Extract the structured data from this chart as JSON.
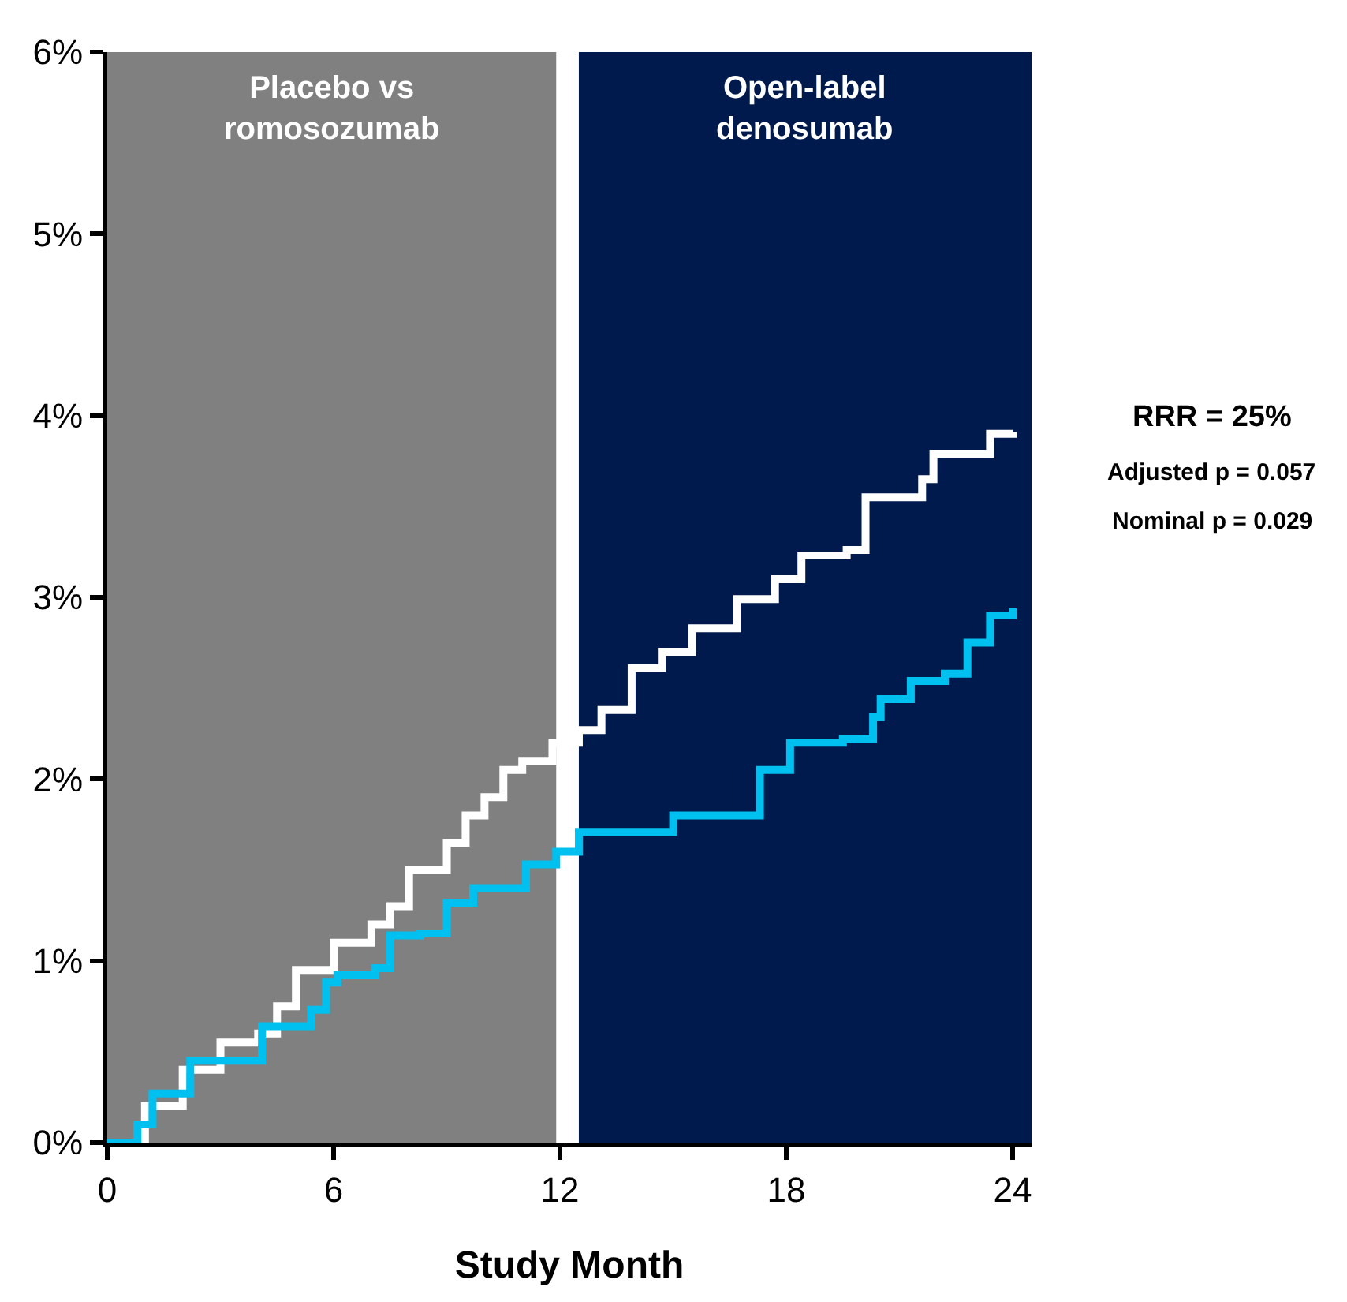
{
  "chart_data": {
    "type": "step",
    "xlabel": "Study Month",
    "xlim": [
      0,
      24.5
    ],
    "xticks": [
      0,
      6,
      12,
      18,
      24
    ],
    "ylim": [
      0,
      6
    ],
    "yticks": [
      {
        "value": 0,
        "label": "0%"
      },
      {
        "value": 1,
        "label": "1%"
      },
      {
        "value": 2,
        "label": "2%"
      },
      {
        "value": 3,
        "label": "3%"
      },
      {
        "value": 4,
        "label": "4%"
      },
      {
        "value": 5,
        "label": "5%"
      },
      {
        "value": 6,
        "label": "6%"
      }
    ],
    "grid": false,
    "marker": "none",
    "line_style": "solid",
    "bands": [
      {
        "axis": "x",
        "from": 0,
        "to": 11.9,
        "label": "Placebo vs\nromosozumab",
        "color": "#808080"
      },
      {
        "axis": "x",
        "from": 12.5,
        "to": 24.5,
        "label": "Open-label\ndenosumab",
        "color": "#001a4d"
      }
    ],
    "series": [
      {
        "color": "#ffffff",
        "x": [
          0,
          1,
          2,
          3,
          4,
          4.5,
          5,
          6,
          7,
          7.5,
          8,
          9,
          9.5,
          10,
          10.5,
          11,
          11.8,
          12.5,
          13.1,
          13.9,
          14.7,
          15.5,
          16.7,
          17.7,
          18.4,
          19.6,
          20.1,
          21.6,
          21.9,
          23.4,
          24
        ],
        "values": [
          0,
          0.2,
          0.4,
          0.55,
          0.6,
          0.75,
          0.95,
          1.1,
          1.2,
          1.3,
          1.5,
          1.65,
          1.8,
          1.9,
          2.05,
          2.1,
          2.2,
          2.27,
          2.38,
          2.61,
          2.7,
          2.83,
          2.99,
          3.1,
          3.23,
          3.26,
          3.55,
          3.65,
          3.79,
          3.9,
          3.91
        ]
      },
      {
        "color": "#00c0f0",
        "x": [
          0,
          0.8,
          1.2,
          2.2,
          3.4,
          4.1,
          5.4,
          5.8,
          6.1,
          7.1,
          7.5,
          8.3,
          9,
          9.7,
          10.9,
          11.1,
          11.9,
          12.5,
          14.8,
          15,
          16.6,
          17.3,
          18.1,
          19.5,
          20.3,
          20.5,
          21.3,
          22.2,
          22.8,
          23.4,
          24
        ],
        "values": [
          0,
          0.1,
          0.27,
          0.45,
          0.45,
          0.64,
          0.73,
          0.88,
          0.92,
          0.96,
          1.14,
          1.15,
          1.32,
          1.4,
          1.4,
          1.53,
          1.6,
          1.71,
          1.71,
          1.8,
          1.8,
          2.05,
          2.2,
          2.22,
          2.34,
          2.44,
          2.54,
          2.58,
          2.75,
          2.9,
          2.94
        ]
      }
    ],
    "annotations": [
      "RRR = 25%",
      "Adjusted p = 0.057",
      "Nominal p = 0.029"
    ]
  }
}
